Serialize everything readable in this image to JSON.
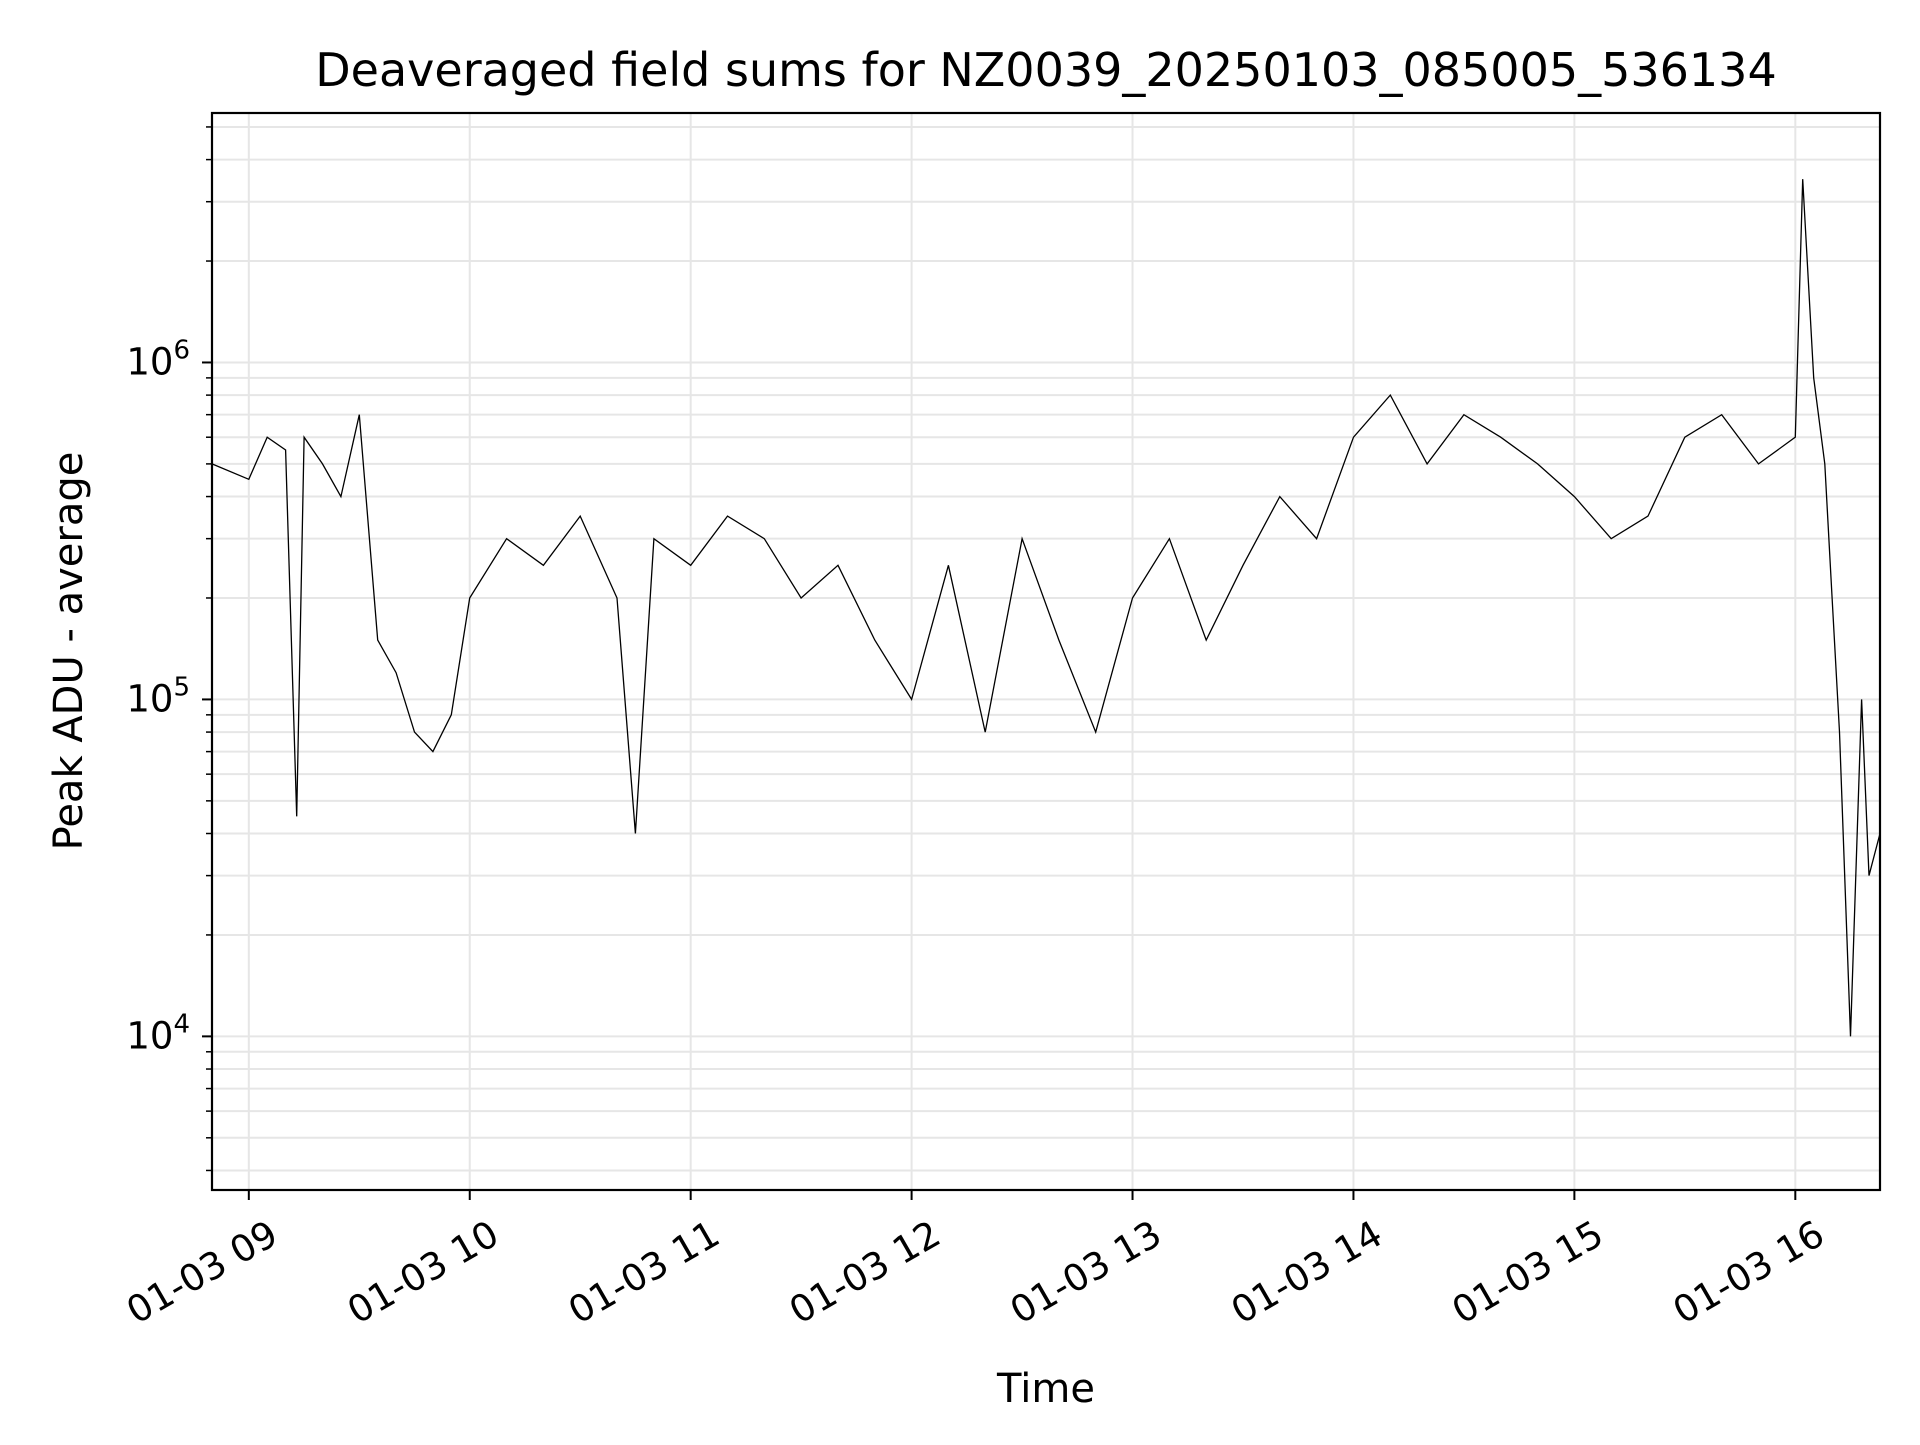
{
  "chart_data": {
    "type": "line",
    "title": "Deaveraged field sums for NZ0039_20250103_085005_536134",
    "xlabel": "Time",
    "ylabel": "Peak ADU - average",
    "y_scale": "log",
    "ylim": [
      3500,
      5500000
    ],
    "xlim": [
      "01-03 08:50",
      "01-03 16:23"
    ],
    "grid": true,
    "line_color": "#000000",
    "x_ticks": [
      "01-03 09",
      "01-03 10",
      "01-03 11",
      "01-03 12",
      "01-03 13",
      "01-03 14",
      "01-03 15",
      "01-03 16"
    ],
    "y_ticks": [
      {
        "value": 10000,
        "base": "10",
        "exp": "4"
      },
      {
        "value": 100000,
        "base": "10",
        "exp": "5"
      },
      {
        "value": 1000000,
        "base": "10",
        "exp": "6"
      }
    ],
    "series": [
      {
        "x": [
          "01-03 08:50",
          "01-03 09:00",
          "01-03 09:05",
          "01-03 09:10",
          "01-03 09:13",
          "01-03 09:15",
          "01-03 09:20",
          "01-03 09:25",
          "01-03 09:30",
          "01-03 09:35",
          "01-03 09:40",
          "01-03 09:45",
          "01-03 09:50",
          "01-03 09:55",
          "01-03 10:00",
          "01-03 10:10",
          "01-03 10:20",
          "01-03 10:30",
          "01-03 10:40",
          "01-03 10:45",
          "01-03 10:50",
          "01-03 11:00",
          "01-03 11:10",
          "01-03 11:20",
          "01-03 11:30",
          "01-03 11:40",
          "01-03 11:50",
          "01-03 12:00",
          "01-03 12:10",
          "01-03 12:20",
          "01-03 12:30",
          "01-03 12:40",
          "01-03 12:50",
          "01-03 13:00",
          "01-03 13:10",
          "01-03 13:20",
          "01-03 13:30",
          "01-03 13:40",
          "01-03 13:50",
          "01-03 14:00",
          "01-03 14:10",
          "01-03 14:20",
          "01-03 14:30",
          "01-03 14:40",
          "01-03 14:50",
          "01-03 15:00",
          "01-03 15:10",
          "01-03 15:20",
          "01-03 15:30",
          "01-03 15:40",
          "01-03 15:50",
          "01-03 16:00",
          "01-03 16:02",
          "01-03 16:05",
          "01-03 16:08",
          "01-03 16:10",
          "01-03 16:12",
          "01-03 16:15",
          "01-03 16:18",
          "01-03 16:20",
          "01-03 16:23"
        ],
        "values": [
          500000,
          450000,
          600000,
          550000,
          45000,
          600000,
          500000,
          400000,
          700000,
          150000,
          120000,
          80000,
          70000,
          90000,
          200000,
          300000,
          250000,
          350000,
          200000,
          40000,
          300000,
          250000,
          350000,
          300000,
          200000,
          250000,
          150000,
          100000,
          250000,
          80000,
          300000,
          150000,
          80000,
          200000,
          300000,
          150000,
          250000,
          400000,
          300000,
          600000,
          800000,
          500000,
          700000,
          600000,
          500000,
          400000,
          300000,
          350000,
          600000,
          700000,
          500000,
          600000,
          3500000,
          900000,
          500000,
          200000,
          80000,
          10000,
          100000,
          30000,
          40000
        ]
      }
    ]
  }
}
